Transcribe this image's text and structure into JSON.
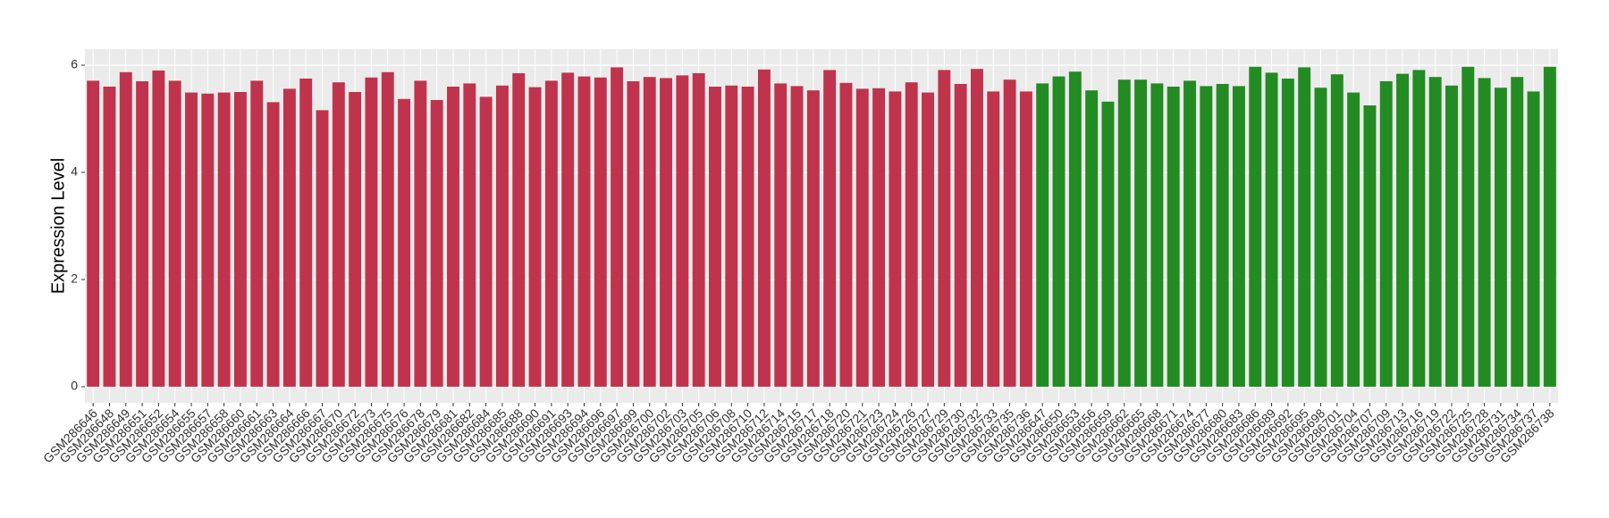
{
  "chart_data": {
    "type": "bar",
    "ylabel": "Expression Level",
    "categories": [
      "GSM286646",
      "GSM286648",
      "GSM286649",
      "GSM286651",
      "GSM286652",
      "GSM286654",
      "GSM286655",
      "GSM286657",
      "GSM286658",
      "GSM286660",
      "GSM286661",
      "GSM286663",
      "GSM286664",
      "GSM286666",
      "GSM286667",
      "GSM286670",
      "GSM286672",
      "GSM286673",
      "GSM286675",
      "GSM286676",
      "GSM286678",
      "GSM286679",
      "GSM286681",
      "GSM286682",
      "GSM286684",
      "GSM286685",
      "GSM286688",
      "GSM286690",
      "GSM286691",
      "GSM286693",
      "GSM286694",
      "GSM286696",
      "GSM286697",
      "GSM286699",
      "GSM286700",
      "GSM286702",
      "GSM286703",
      "GSM286705",
      "GSM286706",
      "GSM286708",
      "GSM286710",
      "GSM286712",
      "GSM286714",
      "GSM286715",
      "GSM286717",
      "GSM286718",
      "GSM286720",
      "GSM286721",
      "GSM286723",
      "GSM286724",
      "GSM286726",
      "GSM286727",
      "GSM286729",
      "GSM286730",
      "GSM286732",
      "GSM286733",
      "GSM286735",
      "GSM286736",
      "GSM286647",
      "GSM286650",
      "GSM286653",
      "GSM286656",
      "GSM286659",
      "GSM286662",
      "GSM286665",
      "GSM286668",
      "GSM286671",
      "GSM286674",
      "GSM286677",
      "GSM286680",
      "GSM286683",
      "GSM286686",
      "GSM286689",
      "GSM286692",
      "GSM286695",
      "GSM286698",
      "GSM286701",
      "GSM286704",
      "GSM286707",
      "GSM286709",
      "GSM286713",
      "GSM286716",
      "GSM286719",
      "GSM286722",
      "GSM286725",
      "GSM286728",
      "GSM286731",
      "GSM286734",
      "GSM286737",
      "GSM286738"
    ],
    "values": [
      5.71,
      5.6,
      5.87,
      5.7,
      5.9,
      5.71,
      5.49,
      5.47,
      5.49,
      5.5,
      5.71,
      5.31,
      5.56,
      5.75,
      5.16,
      5.68,
      5.5,
      5.77,
      5.87,
      5.37,
      5.71,
      5.35,
      5.6,
      5.66,
      5.41,
      5.62,
      5.85,
      5.59,
      5.71,
      5.86,
      5.79,
      5.77,
      5.96,
      5.7,
      5.78,
      5.76,
      5.81,
      5.85,
      5.6,
      5.62,
      5.6,
      5.92,
      5.66,
      5.61,
      5.53,
      5.91,
      5.67,
      5.56,
      5.57,
      5.51,
      5.68,
      5.49,
      5.91,
      5.65,
      5.93,
      5.51,
      5.73,
      5.51,
      5.66,
      5.79,
      5.88,
      5.53,
      5.32,
      5.73,
      5.73,
      5.66,
      5.6,
      5.71,
      5.61,
      5.65,
      5.61,
      5.97,
      5.86,
      5.75,
      5.96,
      5.58,
      5.83,
      5.49,
      5.25,
      5.7,
      5.84,
      5.91,
      5.78,
      5.62,
      5.97,
      5.76,
      5.58,
      5.78,
      5.51,
      5.97
    ],
    "colors": [
      "#c0334d",
      "#c0334d",
      "#c0334d",
      "#c0334d",
      "#c0334d",
      "#c0334d",
      "#c0334d",
      "#c0334d",
      "#c0334d",
      "#c0334d",
      "#c0334d",
      "#c0334d",
      "#c0334d",
      "#c0334d",
      "#c0334d",
      "#c0334d",
      "#c0334d",
      "#c0334d",
      "#c0334d",
      "#c0334d",
      "#c0334d",
      "#c0334d",
      "#c0334d",
      "#c0334d",
      "#c0334d",
      "#c0334d",
      "#c0334d",
      "#c0334d",
      "#c0334d",
      "#c0334d",
      "#c0334d",
      "#c0334d",
      "#c0334d",
      "#c0334d",
      "#c0334d",
      "#c0334d",
      "#c0334d",
      "#c0334d",
      "#c0334d",
      "#c0334d",
      "#c0334d",
      "#c0334d",
      "#c0334d",
      "#c0334d",
      "#c0334d",
      "#c0334d",
      "#c0334d",
      "#c0334d",
      "#c0334d",
      "#c0334d",
      "#c0334d",
      "#c0334d",
      "#c0334d",
      "#c0334d",
      "#c0334d",
      "#c0334d",
      "#c0334d",
      "#c0334d",
      "#228b22",
      "#228b22",
      "#228b22",
      "#228b22",
      "#228b22",
      "#228b22",
      "#228b22",
      "#228b22",
      "#228b22",
      "#228b22",
      "#228b22",
      "#228b22",
      "#228b22",
      "#228b22",
      "#228b22",
      "#228b22",
      "#228b22",
      "#228b22",
      "#228b22",
      "#228b22",
      "#228b22",
      "#228b22",
      "#228b22",
      "#228b22",
      "#228b22",
      "#228b22",
      "#228b22",
      "#228b22",
      "#228b22",
      "#228b22",
      "#228b22",
      "#228b22"
    ],
    "ylim": [
      -0.3,
      6.3
    ],
    "yticks": [
      0,
      2,
      4,
      6
    ],
    "grid": true
  }
}
